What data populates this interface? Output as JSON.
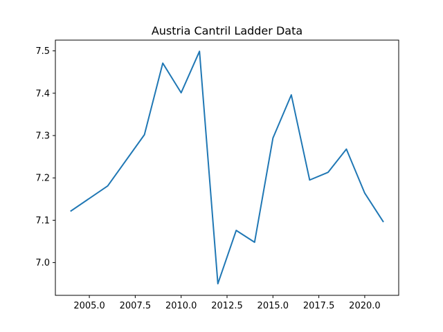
{
  "chart_data": {
    "type": "line",
    "title": "Austria Cantril Ladder Data",
    "xlabel": "",
    "ylabel": "",
    "xlim": [
      2003.15,
      2021.85
    ],
    "ylim": [
      6.9226,
      7.5254
    ],
    "xticks": [
      2005.0,
      2007.5,
      2010.0,
      2012.5,
      2015.0,
      2017.5,
      2020.0
    ],
    "xtick_labels": [
      "2005.0",
      "2007.5",
      "2010.0",
      "2012.5",
      "2015.0",
      "2017.5",
      "2020.0"
    ],
    "yticks": [
      7.0,
      7.1,
      7.2,
      7.3,
      7.4,
      7.5
    ],
    "ytick_labels": [
      "7.0",
      "7.1",
      "7.2",
      "7.3",
      "7.4",
      "7.5"
    ],
    "grid": false,
    "line_color": "#1f77b4",
    "series": [
      {
        "x": [
          2004,
          2006,
          2008,
          2009,
          2010,
          2011,
          2012,
          2013,
          2014,
          2015,
          2016,
          2017,
          2018,
          2019,
          2020,
          2021
        ],
        "y": [
          7.122,
          7.181,
          7.302,
          7.471,
          7.401,
          7.499,
          6.95,
          7.076,
          7.048,
          7.294,
          7.396,
          7.195,
          7.213,
          7.268,
          7.164,
          7.097
        ]
      }
    ]
  }
}
